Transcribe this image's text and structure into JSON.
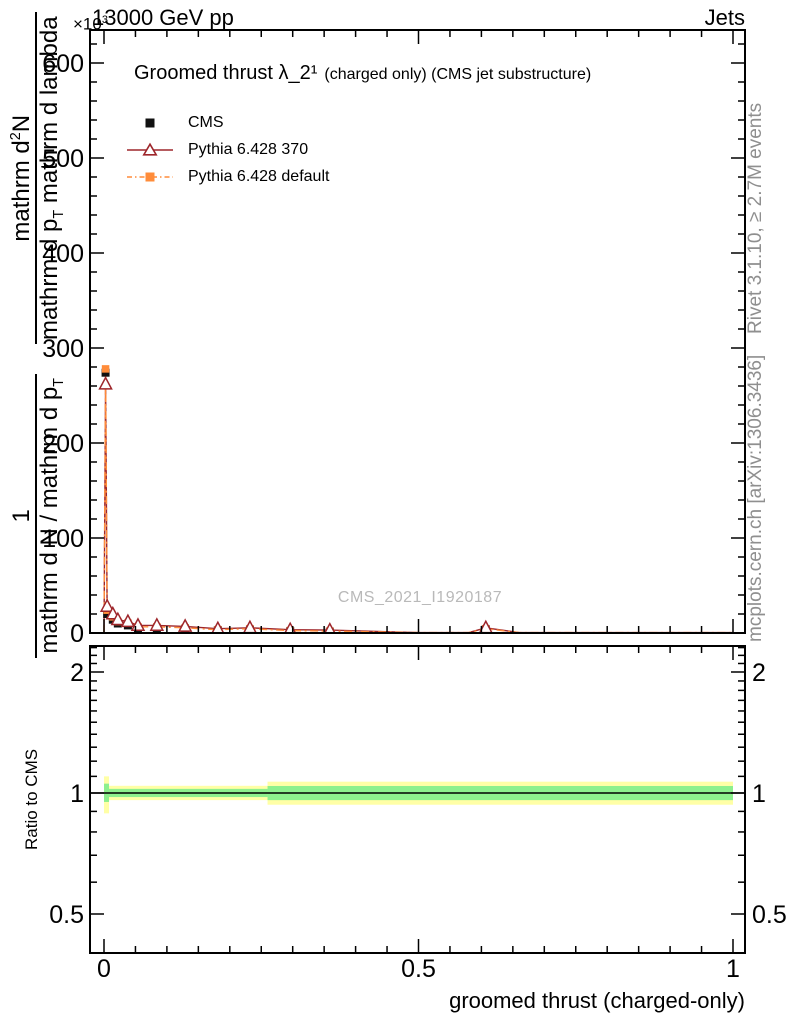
{
  "header": {
    "scale_note_base": "×10",
    "scale_note_exp": "3",
    "energy_title": "13000 GeV pp",
    "right_title": "Jets"
  },
  "plot_title": {
    "big": "Groomed thrust λ_2¹",
    "small": "(charged only) (CMS jet substructure)"
  },
  "legend": [
    {
      "label": "CMS",
      "color": "#111111",
      "marker": "filled-square",
      "line": "none"
    },
    {
      "label": "Pythia 6.428 370",
      "color": "#9e262b",
      "marker": "open-triangle",
      "line": "solid"
    },
    {
      "label": "Pythia 6.428 default",
      "color": "#ff8c3a",
      "marker": "filled-square",
      "line": "dash-dot"
    }
  ],
  "watermark": "CMS_2021_I1920187",
  "side_notes": {
    "top": "Rivet 3.1.10, ≥ 2.7M events",
    "bottom": "mcplots.cern.ch [arXiv:1306.3436]"
  },
  "axis_labels": {
    "xlabel": "groomed thrust (charged-only)",
    "ratio_ylabel": "Ratio to CMS",
    "ylabel": {
      "f1_num": "1",
      "f1_den_a": "mathrm d N / mathrm d p",
      "f1_den_sub": "T",
      "f2_num_a": "mathrm d",
      "f2_num_sup": "2",
      "f2_num_b": "N",
      "f2_den_a": "mathrm d p",
      "f2_den_sub": "T",
      "f2_den_b": " mathrm d lambda"
    }
  },
  "chart_data": {
    "type": "line",
    "title": "Groomed thrust λ_2¹ (charged only) (CMS jet substructure)",
    "xlabel": "groomed thrust (charged-only)",
    "ylabel": "1/(dN/dp_T) d²N/(dp_T dlambda)",
    "y_unit_scale": "×10³",
    "xlim": [
      0,
      1
    ],
    "main_ylim": [
      0,
      635
    ],
    "main_yticks": [
      0,
      100,
      200,
      300,
      400,
      500,
      600
    ],
    "main_ytick_labels": [
      "0",
      "100",
      "200",
      "300",
      "400",
      "500",
      "600"
    ],
    "main_y_minor_step": 20,
    "x_major_ticks": [
      0,
      0.5,
      1
    ],
    "x_tick_labels": [
      "0",
      "0.5",
      "1"
    ],
    "x_minor_step": 0.05,
    "ratio_yscale": "log",
    "ratio_ylim": [
      0.4,
      2.32
    ],
    "ratio_yticks": [
      0.5,
      1,
      2
    ],
    "ratio_ytick_labels": [
      "0.5",
      "1",
      "2"
    ],
    "ratio_y_minor_ticks": [
      0.4,
      0.6,
      0.7,
      0.8,
      0.9,
      1.1,
      1.2,
      1.3,
      1.4,
      1.5,
      1.6,
      1.7,
      1.8,
      1.9,
      2.1,
      2.2,
      2.3
    ],
    "legend_position": "top-left",
    "grid": false,
    "x": [
      0.0025,
      0.005,
      0.014,
      0.022,
      0.038,
      0.054,
      0.084,
      0.129,
      0.181,
      0.232,
      0.296,
      0.359,
      0.607
    ],
    "series": [
      {
        "name": "CMS",
        "color": "#111111",
        "marker": "square",
        "line": "none",
        "values": [
          274,
          20,
          14,
          10,
          8,
          5,
          5,
          4,
          3,
          3.5,
          2,
          1.5,
          4
        ]
      },
      {
        "name": "Pythia 6.428 370",
        "color": "#9e262b",
        "marker": "triangle-open",
        "line": "solid",
        "values": [
          262,
          28,
          20,
          14,
          12,
          8,
          8,
          7,
          4.5,
          5.5,
          3.5,
          3,
          5.5
        ]
      },
      {
        "name": "Pythia 6.428 default",
        "color": "#ff8c3a",
        "marker": "square",
        "line": "dash-dot",
        "values": [
          278,
          24,
          17,
          12,
          10.5,
          6.5,
          6.5,
          5.5,
          3.5,
          4.5,
          2.5,
          2,
          4.5
        ]
      }
    ],
    "line_tail_anchors": [
      [
        0,
        0.3
      ],
      [
        0.5,
        0.45
      ],
      [
        0.58,
        0.45
      ],
      [
        0.66,
        0.45
      ],
      [
        1,
        0.4
      ]
    ],
    "ratio_line": 1,
    "ratio_band_colors": {
      "outer": "#ffffa6",
      "inner": "#8df08d"
    },
    "ratio_band_segments": [
      {
        "x0": 0,
        "x1": 0.008,
        "outer": [
          0.89,
          1.1
        ],
        "inner": [
          0.95,
          1.055
        ]
      },
      {
        "x0": 0.008,
        "x1": 0.26,
        "outer": [
          0.96,
          1.042
        ],
        "inner": [
          0.977,
          1.024
        ]
      },
      {
        "x0": 0.26,
        "x1": 1,
        "outer": [
          0.935,
          1.067
        ],
        "inner": [
          0.96,
          1.041
        ]
      }
    ]
  }
}
